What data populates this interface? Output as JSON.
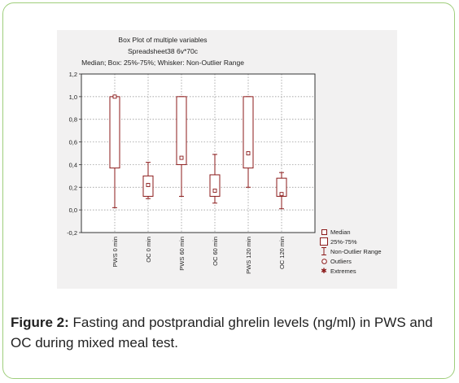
{
  "caption": {
    "label": "Figure 2:",
    "text": " Fasting and postprandial ghrelin levels (ng/ml) in PWS and OC during mixed meal test."
  },
  "chart_data": {
    "type": "box",
    "title": "Box Plot of multiple variables",
    "subtitle": "Spreadsheet38 6v*70c",
    "note": "Median; Box: 25%-75%; Whisker: Non-Outlier Range",
    "categories": [
      "PWS 0 min",
      "OC 0 min",
      "PWS 60 min",
      "OC 60 min",
      "PWS 120 min",
      "OC 120 min"
    ],
    "boxes": [
      {
        "name": "PWS 0 min",
        "min": 0.02,
        "q1": 0.37,
        "median": 1.0,
        "q3": 1.0,
        "max": 1.0
      },
      {
        "name": "OC 0 min",
        "min": 0.1,
        "q1": 0.12,
        "median": 0.22,
        "q3": 0.3,
        "max": 0.42
      },
      {
        "name": "PWS 60 min",
        "min": 0.12,
        "q1": 0.4,
        "median": 0.46,
        "q3": 1.0,
        "max": 1.0
      },
      {
        "name": "OC 60 min",
        "min": 0.06,
        "q1": 0.12,
        "median": 0.17,
        "q3": 0.31,
        "max": 0.49
      },
      {
        "name": "PWS 120 min",
        "min": 0.2,
        "q1": 0.37,
        "median": 0.5,
        "q3": 1.0,
        "max": 1.0
      },
      {
        "name": "OC 120 min",
        "min": 0.01,
        "q1": 0.12,
        "median": 0.14,
        "q3": 0.28,
        "max": 0.33
      }
    ],
    "ylim": [
      -0.2,
      1.2
    ],
    "yticks": [
      "-0,2",
      "0,0",
      "0,2",
      "0,4",
      "0,6",
      "0,8",
      "1,0",
      "1,2"
    ],
    "grid": true,
    "legend_position": "bottom-right",
    "colors": {
      "box": "#8b1a1a",
      "grid": "#8a8a8a",
      "panel": "#f2f1f1"
    }
  },
  "legend": {
    "items": [
      {
        "label": "Median",
        "symbol": "median"
      },
      {
        "label": "25%-75%",
        "symbol": "box"
      },
      {
        "label": "Non-Outlier Range",
        "symbol": "whisker"
      },
      {
        "label": "Outliers",
        "symbol": "outlier"
      },
      {
        "label": "Extremes",
        "symbol": "extreme"
      }
    ]
  }
}
